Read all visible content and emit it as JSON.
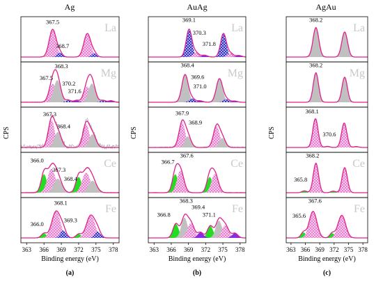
{
  "chart_data": {
    "type": "xps-stacked-spectra",
    "y_axis_label": "CPS",
    "x_axis_label": "Binding energy (eV)",
    "x_ticks": [
      "363",
      "366",
      "369",
      "372",
      "375",
      "378"
    ],
    "xlim": [
      362,
      379
    ],
    "colors": {
      "envelope": "#e0218a",
      "pink_fill": "#e878cc",
      "gray_fill": "#c0c0c0",
      "blue_fill": "#2222c8",
      "green_fill": "#22dd22",
      "purple_fill": "#8a2be2",
      "noise": "#a8a8a8",
      "element_text": "#c8c8c8"
    },
    "columns": [
      {
        "title": "Ag",
        "panel_label": "(a)",
        "rows": [
          {
            "element": "La",
            "noise": 0.0,
            "labels": [
              {
                "text": "367.5",
                "x": 367.5,
                "y": 0.9
              },
              {
                "text": "368.7",
                "x": 369.2,
                "y": 0.25
              }
            ],
            "peaks": [
              {
                "pos": 367.5,
                "h": 0.75,
                "w": 0.6,
                "fill": "pink"
              },
              {
                "pos": 368.7,
                "h": 0.12,
                "w": 0.45,
                "fill": "blue"
              }
            ]
          },
          {
            "element": "Mg",
            "noise": 0.02,
            "labels": [
              {
                "text": "368.3",
                "x": 369.0,
                "y": 0.92
              },
              {
                "text": "367.5",
                "x": 366.4,
                "y": 0.6
              },
              {
                "text": "370.2",
                "x": 370.3,
                "y": 0.45
              },
              {
                "text": "371.6",
                "x": 371.3,
                "y": 0.25
              }
            ],
            "peaks": [
              {
                "pos": 367.5,
                "h": 0.5,
                "w": 0.6,
                "fill": "pink"
              },
              {
                "pos": 368.3,
                "h": 0.6,
                "w": 0.6,
                "fill": "gray"
              },
              {
                "pos": 370.2,
                "h": 0.06,
                "w": 0.45,
                "fill": "blue"
              },
              {
                "pos": 371.6,
                "h": 0.05,
                "w": 0.45,
                "fill": "purple"
              }
            ]
          },
          {
            "element": "",
            "noise": 0.12,
            "labels": [
              {
                "text": "367.3",
                "x": 367.0,
                "y": 0.85
              },
              {
                "text": "368.4",
                "x": 369.4,
                "y": 0.52
              }
            ],
            "peaks": [
              {
                "pos": 367.3,
                "h": 0.75,
                "w": 0.55,
                "fill": "pink"
              },
              {
                "pos": 368.4,
                "h": 0.42,
                "w": 0.6,
                "fill": "gray"
              }
            ]
          },
          {
            "element": "Ce",
            "noise": 0.03,
            "labels": [
              {
                "text": "366.0",
                "x": 364.8,
                "y": 0.82
              },
              {
                "text": "367.3",
                "x": 368.6,
                "y": 0.57
              },
              {
                "text": "368.4",
                "x": 370.6,
                "y": 0.32
              }
            ],
            "peaks": [
              {
                "pos": 366.0,
                "h": 0.5,
                "w": 0.5,
                "fill": "green"
              },
              {
                "pos": 367.3,
                "h": 0.65,
                "w": 0.7,
                "fill": "pink"
              },
              {
                "pos": 368.4,
                "h": 0.38,
                "w": 0.7,
                "fill": "gray"
              }
            ]
          },
          {
            "element": "Fe",
            "noise": 0.0,
            "labels": [
              {
                "text": "368.1",
                "x": 368.9,
                "y": 0.9
              },
              {
                "text": "366.0",
                "x": 364.8,
                "y": 0.32
              },
              {
                "text": "369.3",
                "x": 370.6,
                "y": 0.42
              }
            ],
            "peaks": [
              {
                "pos": 366.0,
                "h": 0.12,
                "w": 0.45,
                "fill": "green"
              },
              {
                "pos": 368.1,
                "h": 0.72,
                "w": 0.75,
                "fill": "pink"
              },
              {
                "pos": 369.3,
                "h": 0.2,
                "w": 0.5,
                "fill": "blue"
              }
            ]
          }
        ]
      },
      {
        "title": "AuAg",
        "panel_label": "(b)",
        "rows": [
          {
            "element": "La",
            "noise": 0.0,
            "labels": [
              {
                "text": "369.1",
                "x": 369.1,
                "y": 0.95
              },
              {
                "text": "370.3",
                "x": 370.9,
                "y": 0.6
              },
              {
                "text": "371.8",
                "x": 372.6,
                "y": 0.3
              }
            ],
            "peaks": [
              {
                "pos": 369.1,
                "h": 0.75,
                "w": 0.5,
                "fill": "blue"
              },
              {
                "pos": 370.3,
                "h": 0.12,
                "w": 0.5,
                "fill": "pink"
              },
              {
                "pos": 371.8,
                "h": 0.05,
                "w": 0.5,
                "fill": "purple"
              }
            ]
          },
          {
            "element": "Mg",
            "noise": 0.0,
            "labels": [
              {
                "text": "368.4",
                "x": 368.8,
                "y": 0.95
              },
              {
                "text": "369.6",
                "x": 370.6,
                "y": 0.63
              },
              {
                "text": "371.0",
                "x": 371.0,
                "y": 0.38
              }
            ],
            "peaks": [
              {
                "pos": 368.4,
                "h": 0.75,
                "w": 0.55,
                "fill": "gray"
              },
              {
                "pos": 369.6,
                "h": 0.1,
                "w": 0.5,
                "fill": "blue"
              },
              {
                "pos": 371.0,
                "h": 0.04,
                "w": 0.5,
                "fill": "purple"
              }
            ]
          },
          {
            "element": "",
            "noise": 0.03,
            "labels": [
              {
                "text": "367.9",
                "x": 367.9,
                "y": 0.88
              },
              {
                "text": "368.9",
                "x": 370.2,
                "y": 0.62
              }
            ],
            "peaks": [
              {
                "pos": 367.9,
                "h": 0.68,
                "w": 0.55,
                "fill": "pink"
              },
              {
                "pos": 368.9,
                "h": 0.3,
                "w": 0.55,
                "fill": "gray"
              }
            ]
          },
          {
            "element": "Ce",
            "noise": 0.02,
            "labels": [
              {
                "text": "367.6",
                "x": 368.7,
                "y": 0.95
              },
              {
                "text": "366.7",
                "x": 365.4,
                "y": 0.78
              }
            ],
            "peaks": [
              {
                "pos": 366.7,
                "h": 0.5,
                "w": 0.5,
                "fill": "green"
              },
              {
                "pos": 367.6,
                "h": 0.6,
                "w": 0.6,
                "fill": "pink"
              }
            ]
          },
          {
            "element": "Fe",
            "noise": 0.0,
            "labels": [
              {
                "text": "368.3",
                "x": 368.6,
                "y": 0.95
              },
              {
                "text": "369.4",
                "x": 370.7,
                "y": 0.78
              },
              {
                "text": "366.8",
                "x": 364.7,
                "y": 0.58
              },
              {
                "text": "371.1",
                "x": 372.6,
                "y": 0.58
              }
            ],
            "peaks": [
              {
                "pos": 366.8,
                "h": 0.38,
                "w": 0.5,
                "fill": "green"
              },
              {
                "pos": 368.3,
                "h": 0.55,
                "w": 0.55,
                "fill": "gray"
              },
              {
                "pos": 369.4,
                "h": 0.4,
                "w": 0.6,
                "fill": "pink"
              },
              {
                "pos": 371.1,
                "h": 0.15,
                "w": 0.5,
                "fill": "purple"
              }
            ]
          }
        ]
      },
      {
        "title": "AgAu",
        "panel_label": "(c)",
        "rows": [
          {
            "element": "La",
            "noise": 0.0,
            "labels": [
              {
                "text": "368.2",
                "x": 368.2,
                "y": 0.95
              }
            ],
            "peaks": [
              {
                "pos": 368.2,
                "h": 0.8,
                "w": 0.6,
                "fill": "gray"
              }
            ]
          },
          {
            "element": "Mg",
            "noise": 0.0,
            "labels": [
              {
                "text": "368.2",
                "x": 368.2,
                "y": 0.95
              }
            ],
            "peaks": [
              {
                "pos": 368.2,
                "h": 0.8,
                "w": 0.55,
                "fill": "gray"
              }
            ]
          },
          {
            "element": "",
            "noise": 0.0,
            "labels": [
              {
                "text": "368.1",
                "x": 367.4,
                "y": 0.92
              },
              {
                "text": "370.6",
                "x": 371.0,
                "y": 0.3
              }
            ],
            "peaks": [
              {
                "pos": 368.1,
                "h": 0.78,
                "w": 0.55,
                "fill": "pink"
              },
              {
                "pos": 370.6,
                "h": 0.03,
                "w": 0.5,
                "fill": "gray"
              }
            ]
          },
          {
            "element": "Ce",
            "noise": 0.0,
            "labels": [
              {
                "text": "368.2",
                "x": 367.5,
                "y": 0.95
              },
              {
                "text": "365.8",
                "x": 365.0,
                "y": 0.3
              }
            ],
            "peaks": [
              {
                "pos": 365.8,
                "h": 0.05,
                "w": 0.5,
                "fill": "green"
              },
              {
                "pos": 368.2,
                "h": 0.8,
                "w": 0.55,
                "fill": "pink"
              }
            ]
          },
          {
            "element": "Fe",
            "noise": 0.0,
            "labels": [
              {
                "text": "367.6",
                "x": 368.0,
                "y": 0.95
              },
              {
                "text": "365.6",
                "x": 364.7,
                "y": 0.55
              }
            ],
            "peaks": [
              {
                "pos": 365.6,
                "h": 0.15,
                "w": 0.5,
                "fill": "green"
              },
              {
                "pos": 367.6,
                "h": 0.72,
                "w": 0.8,
                "fill": "pink"
              }
            ]
          }
        ]
      }
    ]
  }
}
